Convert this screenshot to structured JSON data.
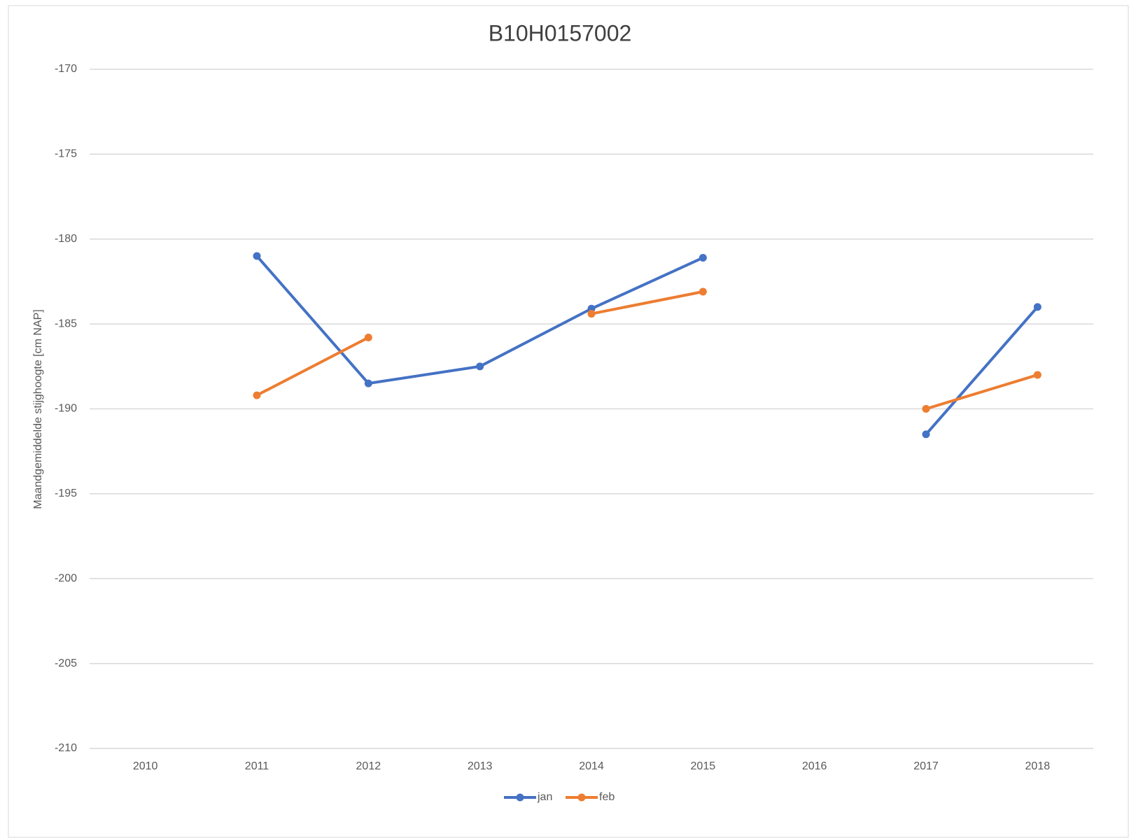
{
  "chart_data": {
    "type": "line",
    "title": "B10H0157002",
    "y_label": "Maandgemiddelde stijghoogte [cm NAP]",
    "categories": [
      "2010",
      "2011",
      "2012",
      "2013",
      "2014",
      "2015",
      "2016",
      "2017",
      "2018"
    ],
    "series": [
      {
        "name": "jan",
        "color": "#4472c4",
        "values": [
          null,
          -181.0,
          -188.5,
          -187.5,
          -184.1,
          -181.1,
          null,
          -191.5,
          -184.0
        ]
      },
      {
        "name": "feb",
        "color": "#ed7d31",
        "values": [
          null,
          -189.2,
          -185.8,
          null,
          -184.4,
          -183.1,
          null,
          -190.0,
          -188.0
        ]
      }
    ],
    "ylim": [
      -210,
      -170
    ],
    "yticks": [
      -210,
      -205,
      -200,
      -195,
      -190,
      -185,
      -180,
      -175,
      -170
    ],
    "grid": true,
    "legend": "bottom"
  }
}
